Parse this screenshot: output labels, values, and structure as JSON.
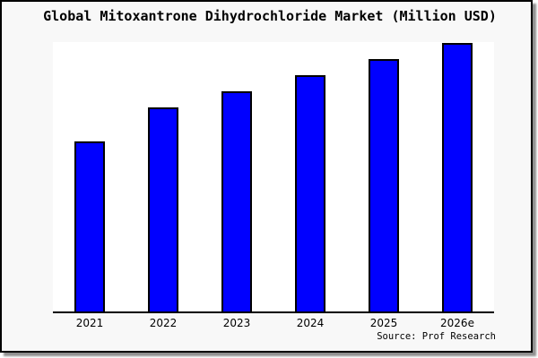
{
  "page": {
    "background": "#ffffff",
    "frame_background": "#f8f8f8",
    "frame_border_color": "#000000",
    "shadow_color": "#8f8f8f",
    "plot_background": "#ffffff",
    "axis_color": "#000000"
  },
  "chart_data": {
    "type": "bar",
    "title": "Global Mitoxantrone Dihydrochloride Market (Million USD)",
    "categories": [
      "2021",
      "2022",
      "2023",
      "2024",
      "2025",
      "2026e"
    ],
    "values": [
      63,
      76,
      82,
      88,
      94,
      100
    ],
    "values_note": "No y-axis ticks, gridlines or data labels are shown in the chart; values are estimated relative bar heights with 2026e = 100",
    "ylim": [
      0,
      101
    ],
    "xlabel": "",
    "ylabel": "",
    "grid": false,
    "legend": false,
    "bar_color": "#0000ff",
    "bar_border_color": "#000000",
    "source": "Source: Prof Research"
  }
}
